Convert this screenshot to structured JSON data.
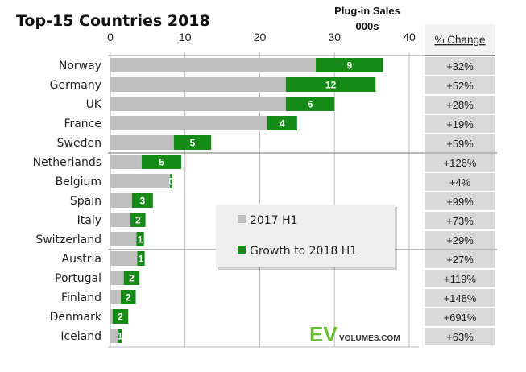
{
  "chart_data": {
    "type": "bar",
    "orientation": "horizontal",
    "stacked": true,
    "title": "Top-15 Countries 2018",
    "unit_label_line1": "Plug-in Sales",
    "unit_label_line2": "000s",
    "xlabel": "Plug-in Sales (000s)",
    "ylabel": "",
    "xlim": [
      0,
      40
    ],
    "xticks": [
      0,
      10,
      20,
      30,
      40
    ],
    "grid": true,
    "legend_position": "center-right",
    "categories": [
      "Norway",
      "Germany",
      "UK",
      "France",
      "Sweden",
      "Netherlands",
      "Belgium",
      "Spain",
      "Italy",
      "Switzerland",
      "Austria",
      "Portugal",
      "Finland",
      "Denmark",
      "Iceland"
    ],
    "series": [
      {
        "name": "2017 H1",
        "color": "#bfbfbf",
        "values": [
          27.5,
          23.5,
          23.5,
          21.0,
          8.5,
          4.2,
          8.0,
          2.9,
          2.7,
          3.5,
          3.6,
          1.8,
          1.4,
          0.3,
          1.0
        ]
      },
      {
        "name": "Growth to 2018 H1",
        "color": "#168a16",
        "values": [
          9.0,
          12.0,
          6.5,
          4.0,
          5.0,
          5.3,
          0.3,
          2.8,
          2.0,
          1.0,
          1.0,
          2.1,
          2.0,
          2.1,
          0.6
        ],
        "data_labels": [
          "9",
          "12",
          "6",
          "4",
          "5",
          "5",
          "0",
          "3",
          "2",
          "1",
          "1",
          "2",
          "2",
          "2",
          "1"
        ]
      }
    ],
    "pct_change_header": "% Change",
    "pct_change": [
      "+32%",
      "+52%",
      "+28%",
      "+19%",
      "+59%",
      "+126%",
      "+4%",
      "+99%",
      "+73%",
      "+29%",
      "+27%",
      "+119%",
      "+148%",
      "+691%",
      "+63%"
    ],
    "group_separators_after": [
      "Sweden",
      "Switzerland"
    ]
  },
  "branding": {
    "logo_ev": "EV",
    "logo_text": "VOLUMES.COM"
  },
  "colors": {
    "base": "#bfbfbf",
    "growth": "#168a16",
    "pct_cell": "#d9d9d9",
    "grid": "#bdbdbd",
    "logo_green": "#6cbf2c"
  }
}
